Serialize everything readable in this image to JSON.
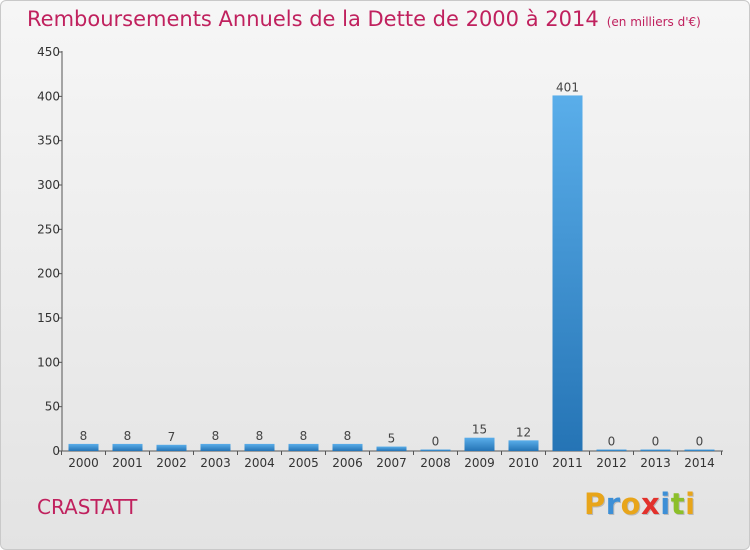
{
  "header": {
    "title": "Remboursements Annuels de la Dette de 2000 à 2014",
    "unit": "(en milliers d'€)"
  },
  "footer": {
    "commune": "CRASTATT",
    "brand_letters": [
      "P",
      "r",
      "o",
      "x",
      "i",
      "t",
      "i"
    ]
  },
  "colors": {
    "accent": "#c0215e",
    "bar_light": "#5aaeea",
    "bar_dark": "#2574b5",
    "axis": "#555555"
  },
  "chart_data": {
    "type": "bar",
    "categories": [
      "2000",
      "2001",
      "2002",
      "2003",
      "2004",
      "2005",
      "2006",
      "2007",
      "2008",
      "2009",
      "2010",
      "2011",
      "2012",
      "2013",
      "2014"
    ],
    "values": [
      8,
      8,
      7,
      8,
      8,
      8,
      8,
      5,
      0,
      15,
      12,
      401,
      0,
      0,
      0
    ],
    "data_labels": [
      "8",
      "8",
      "7",
      "8",
      "8",
      "8",
      "8",
      "5",
      "0",
      "15",
      "12",
      "401",
      "0",
      "0",
      "0"
    ],
    "ylim": [
      0,
      450
    ],
    "yticks": [
      0,
      50,
      100,
      150,
      200,
      250,
      300,
      350,
      400,
      450
    ],
    "grid": false,
    "legend": "none",
    "xlabel": "",
    "ylabel": ""
  }
}
